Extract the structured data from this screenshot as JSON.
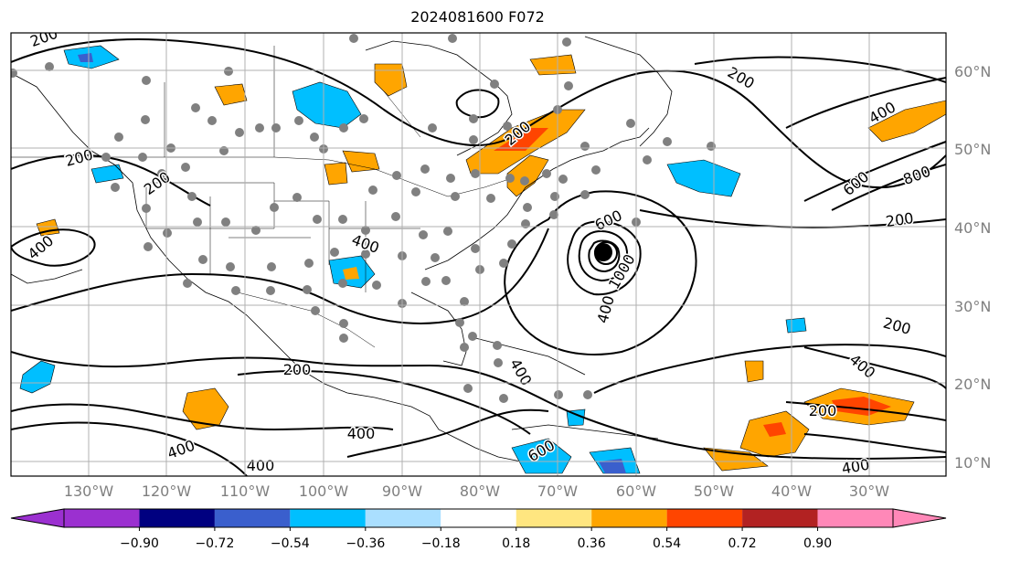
{
  "title": "2024081600 F072",
  "lat_labels": [
    "60°N",
    "50°N",
    "40°N",
    "30°N",
    "20°N",
    "10°N"
  ],
  "lon_labels": [
    "130°W",
    "120°W",
    "110°W",
    "100°W",
    "90°W",
    "80°W",
    "70°W",
    "60°W",
    "50°W",
    "40°W",
    "30°W"
  ],
  "contour_labels": [
    "200",
    "200",
    "400",
    "200",
    "400",
    "400",
    "600",
    "1000",
    "400",
    "200",
    "200",
    "600",
    "800",
    "400",
    "200",
    "400",
    "200",
    "400",
    "600",
    "400",
    "400",
    "200",
    "400",
    "200"
  ],
  "colorbar": {
    "ticks": [
      "−0.90",
      "−0.72",
      "−0.54",
      "−0.36",
      "−0.18",
      "0.18",
      "0.36",
      "0.54",
      "0.72",
      "0.90"
    ],
    "colors": [
      "#9b30d0",
      "#9b30d0",
      "#000080",
      "#3a5fcd",
      "#00bfff",
      "#aadfff",
      "#ffffff",
      "#ffe680",
      "#ffa500",
      "#ff4500",
      "#b22222",
      "#ff88b8",
      "#ff88b8"
    ]
  },
  "colors": {
    "orange": "#ffa500",
    "red": "#ff4500",
    "light_blue": "#00bfff",
    "pale_blue": "#aadfff",
    "obs_dot": "#808080"
  }
}
